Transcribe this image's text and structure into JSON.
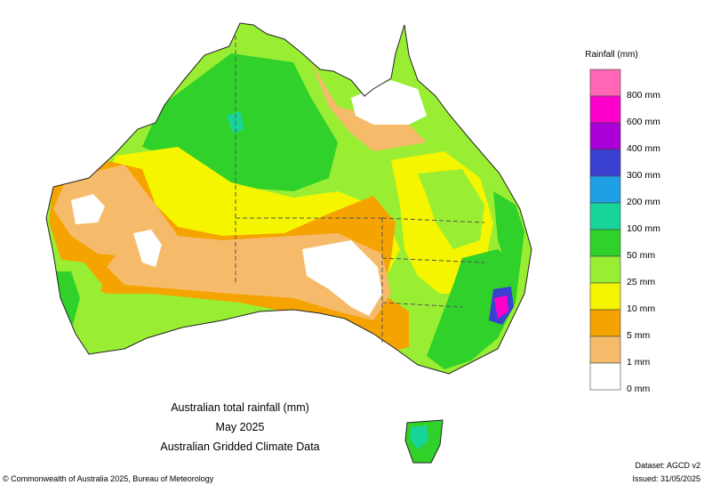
{
  "titles": {
    "line1": "Australian total rainfall (mm)",
    "line2": "May 2025",
    "line3": "Australian Gridded Climate Data"
  },
  "legend": {
    "title": "Rainfall (mm)",
    "classes": [
      {
        "label": "",
        "color": "#ff66b3"
      },
      {
        "label": "800 mm",
        "color": "#ff00cc"
      },
      {
        "label": "600 mm",
        "color": "#a800d6"
      },
      {
        "label": "400 mm",
        "color": "#3a40d0"
      },
      {
        "label": "300 mm",
        "color": "#1e9fe6"
      },
      {
        "label": "200 mm",
        "color": "#17d49a"
      },
      {
        "label": "100 mm",
        "color": "#2fd12a"
      },
      {
        "label": "50 mm",
        "color": "#99ee33"
      },
      {
        "label": "25 mm",
        "color": "#f5f500"
      },
      {
        "label": "10 mm",
        "color": "#f5a300"
      },
      {
        "label": "5 mm",
        "color": "#f6bb6a"
      },
      {
        "label": "1 mm",
        "color": "#ffffff"
      },
      {
        "label": "0 mm",
        "color": ""
      }
    ]
  },
  "footer": {
    "copyright": "© Commonwealth of Australia 2025, Bureau of Meteorology",
    "dataset": "Dataset: AGCD v2",
    "issued": "Issued: 31/05/2025"
  }
}
